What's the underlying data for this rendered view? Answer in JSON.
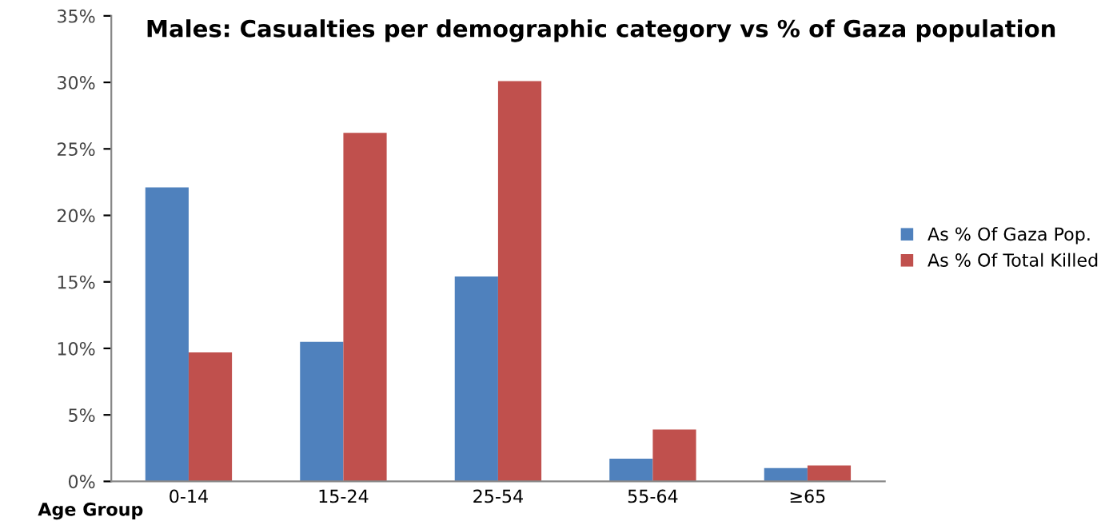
{
  "chart_data": {
    "type": "bar",
    "title": "Males: Casualties per demographic category vs % of Gaza population",
    "xlabel": "Age Group",
    "categories": [
      "0-14",
      "15-24",
      "25-54",
      "55-64",
      "≥65"
    ],
    "series": [
      {
        "name": "As % Of Gaza Pop.",
        "color": "#4f81bd",
        "values": [
          22.1,
          10.5,
          15.4,
          1.7,
          1.0
        ]
      },
      {
        "name": "As % Of Total Killed",
        "color": "#c0504d",
        "values": [
          9.7,
          26.2,
          30.1,
          3.9,
          1.2
        ]
      }
    ],
    "ylim": [
      0,
      35
    ],
    "yticks": [
      {
        "value": 0,
        "label": "0%"
      },
      {
        "value": 5,
        "label": "5%"
      },
      {
        "value": 10,
        "label": "10%"
      },
      {
        "value": 15,
        "label": "15%"
      },
      {
        "value": 20,
        "label": "20%"
      },
      {
        "value": 25,
        "label": "25%"
      },
      {
        "value": 30,
        "label": "30%"
      },
      {
        "value": 35,
        "label": "35%"
      }
    ],
    "grid": false,
    "legend": "right"
  }
}
